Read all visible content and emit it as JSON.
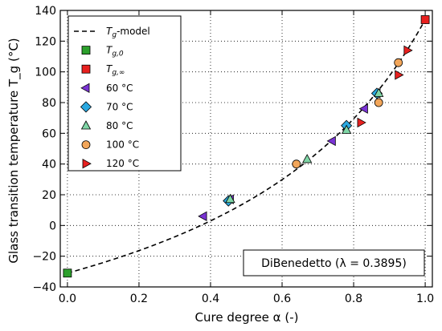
{
  "chart_data": {
    "type": "scatter",
    "title": "",
    "xlabel": "Cure degree α (-)",
    "ylabel": "Glass transition temperature T_g (°C)",
    "xlim": [
      -0.02,
      1.02
    ],
    "ylim": [
      -40,
      140
    ],
    "xticks": [
      0.0,
      0.2,
      0.4,
      0.6,
      0.8,
      1.0
    ],
    "xtick_labels": [
      "0.0",
      "0.2",
      "0.4",
      "0.6",
      "0.8",
      "1.0"
    ],
    "yticks": [
      -40,
      -20,
      0,
      20,
      40,
      60,
      80,
      100,
      120,
      140
    ],
    "ytick_labels": [
      "−40",
      "−20",
      "0",
      "20",
      "40",
      "60",
      "80",
      "100",
      "120",
      "140"
    ],
    "grid": true,
    "legend_position": "top-left",
    "annotation": "DiBenedetto (λ = 0.3895)",
    "model": {
      "name": "Tg-model",
      "tg0": -31,
      "tginf": 134,
      "lambda": 0.3895,
      "style": "dashed",
      "color": "#000000"
    },
    "series": [
      {
        "name": "Tg,0",
        "marker": "square",
        "color": "#2ca02c",
        "points": [
          [
            0.0,
            -31
          ]
        ]
      },
      {
        "name": "Tg,∞",
        "marker": "square",
        "color": "#e8201f",
        "points": [
          [
            1.0,
            134
          ]
        ]
      },
      {
        "name": "60 °C",
        "marker": "triangle-left",
        "color": "#7a33d4",
        "points": [
          [
            0.38,
            6
          ],
          [
            0.455,
            17
          ],
          [
            0.74,
            55
          ],
          [
            0.83,
            76
          ],
          [
            0.865,
            86
          ]
        ]
      },
      {
        "name": "70 °C",
        "marker": "diamond",
        "color": "#2aa8e0",
        "points": [
          [
            0.45,
            16
          ],
          [
            0.78,
            65
          ],
          [
            0.865,
            86
          ]
        ]
      },
      {
        "name": "80 °C",
        "marker": "triangle-up",
        "color": "#7fd6a6",
        "points": [
          [
            0.455,
            17
          ],
          [
            0.67,
            43
          ],
          [
            0.78,
            62
          ],
          [
            0.87,
            86
          ]
        ]
      },
      {
        "name": "100 °C",
        "marker": "circle",
        "color": "#f2a65a",
        "points": [
          [
            0.64,
            40
          ],
          [
            0.87,
            80
          ],
          [
            0.925,
            106
          ]
        ]
      },
      {
        "name": "120 °C",
        "marker": "triangle-right",
        "color": "#e8201f",
        "points": [
          [
            0.82,
            67
          ],
          [
            0.925,
            98
          ],
          [
            0.95,
            114
          ]
        ]
      }
    ],
    "legend": [
      {
        "label_main": "T",
        "label_sub": "g",
        "label_rest": "-model"
      },
      {
        "label_main": "T",
        "label_sub": "g,0",
        "label_rest": ""
      },
      {
        "label_main": "T",
        "label_sub": "g,∞",
        "label_rest": ""
      },
      {
        "label_main": "60 °C"
      },
      {
        "label_main": "70 °C"
      },
      {
        "label_main": "80 °C"
      },
      {
        "label_main": "100 °C"
      },
      {
        "label_main": "120 °C"
      }
    ]
  }
}
